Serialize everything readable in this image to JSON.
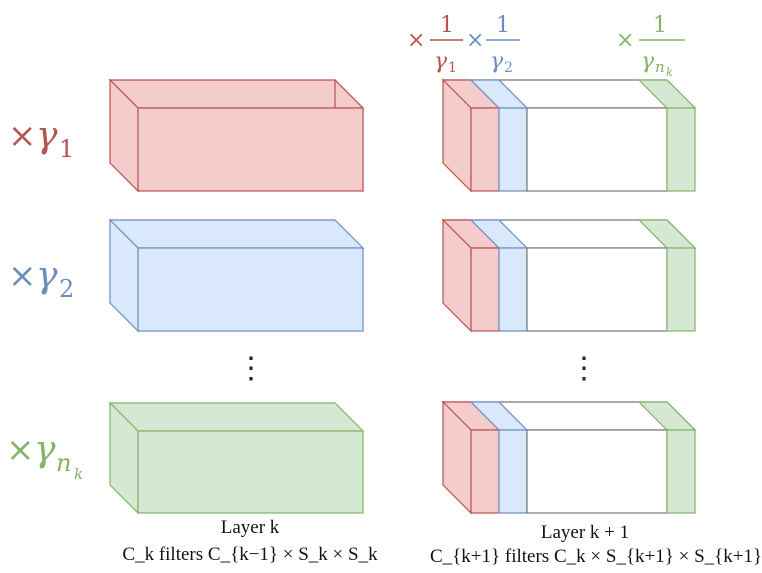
{
  "colors": {
    "red_fill": "#f4cccc",
    "red_stroke": "#b85450",
    "blue_fill": "#dae8fc",
    "blue_stroke": "#6c8ebf",
    "green_fill": "#d5e8d4",
    "green_stroke": "#82b366",
    "gray_stroke": "#777777"
  },
  "scale_labels": [
    {
      "prefix": "×γ",
      "sub": "1",
      "color": "red"
    },
    {
      "prefix": "×γ",
      "sub": "2",
      "color": "blue"
    },
    {
      "prefix": "×γ",
      "sub": "n_k",
      "color": "green"
    }
  ],
  "top_factors": [
    {
      "text": "× 1/γ1",
      "color": "red"
    },
    {
      "text": "× 1/γ2",
      "color": "blue"
    },
    {
      "text": "× 1/γn_k",
      "color": "green"
    }
  ],
  "ellipsis": "⋮",
  "captions": {
    "left_title": "Layer k",
    "left_sub": "C_k filters C_{k−1} × S_k × S_k",
    "right_title": "Layer k + 1",
    "right_sub": "C_{k+1} filters C_k × S_{k+1} × S_{k+1}"
  }
}
